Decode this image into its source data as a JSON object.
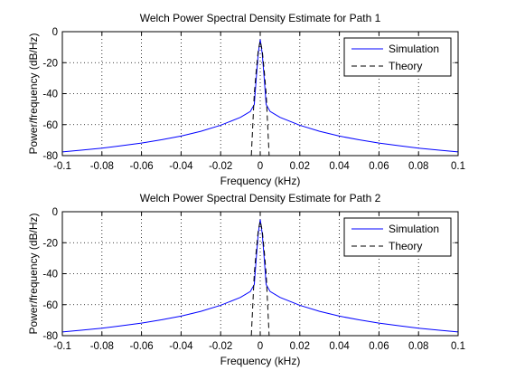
{
  "chart_data": [
    {
      "type": "line",
      "title": "Welch Power Spectral Density Estimate for Path 1",
      "xlabel": "Frequency (kHz)",
      "ylabel": "Power/frequency (dB/Hz)",
      "xlim": [
        -0.1,
        0.1
      ],
      "ylim": [
        -80,
        0
      ],
      "xticks": [
        "-0.1",
        "-0.08",
        "-0.06",
        "-0.04",
        "-0.02",
        "0",
        "0.02",
        "0.04",
        "0.06",
        "0.08",
        "0.1"
      ],
      "yticks": [
        "0",
        "-20",
        "-40",
        "-60",
        "-80"
      ],
      "grid": true,
      "legend_position": "top-right",
      "series": [
        {
          "name": "Simulation",
          "color": "#0000ff",
          "style": "solid",
          "points": [
            [
              -0.1,
              -77.6
            ],
            [
              -0.09,
              -76.4
            ],
            [
              -0.08,
              -75.2
            ],
            [
              -0.07,
              -73.6
            ],
            [
              -0.06,
              -71.9
            ],
            [
              -0.05,
              -69.8
            ],
            [
              -0.04,
              -67.4
            ],
            [
              -0.03,
              -64.3
            ],
            [
              -0.02,
              -60.4
            ],
            [
              -0.01,
              -55.3
            ],
            [
              -0.005,
              -51.5
            ],
            [
              -0.003,
              -47
            ],
            [
              -0.002,
              -30
            ],
            [
              -0.001,
              -14
            ],
            [
              0,
              -5
            ],
            [
              0.001,
              -14
            ],
            [
              0.002,
              -30
            ],
            [
              0.003,
              -47
            ],
            [
              0.005,
              -51.5
            ],
            [
              0.01,
              -55.3
            ],
            [
              0.02,
              -60.4
            ],
            [
              0.03,
              -64.3
            ],
            [
              0.04,
              -67.4
            ],
            [
              0.05,
              -69.8
            ],
            [
              0.06,
              -71.9
            ],
            [
              0.07,
              -73.6
            ],
            [
              0.08,
              -75.2
            ],
            [
              0.09,
              -76.4
            ],
            [
              0.1,
              -77.6
            ]
          ]
        },
        {
          "name": "Theory",
          "color": "#000000",
          "style": "dashed",
          "points": [
            [
              -0.0045,
              -80
            ],
            [
              -0.003,
              -40
            ],
            [
              -0.002,
              -25
            ],
            [
              -0.001,
              -12
            ],
            [
              0,
              -6
            ],
            [
              0.001,
              -12
            ],
            [
              0.002,
              -25
            ],
            [
              0.003,
              -40
            ],
            [
              0.0045,
              -80
            ]
          ]
        }
      ]
    },
    {
      "type": "line",
      "title": "Welch Power Spectral Density Estimate for Path 2",
      "xlabel": "Frequency (kHz)",
      "ylabel": "Power/frequency (dB/Hz)",
      "xlim": [
        -0.1,
        0.1
      ],
      "ylim": [
        -80,
        0
      ],
      "xticks": [
        "-0.1",
        "-0.08",
        "-0.06",
        "-0.04",
        "-0.02",
        "0",
        "0.02",
        "0.04",
        "0.06",
        "0.08",
        "0.1"
      ],
      "yticks": [
        "0",
        "-20",
        "-40",
        "-60",
        "-80"
      ],
      "grid": true,
      "legend_position": "top-right",
      "series": [
        {
          "name": "Simulation",
          "color": "#0000ff",
          "style": "solid",
          "points": [
            [
              -0.1,
              -77.6
            ],
            [
              -0.09,
              -76.4
            ],
            [
              -0.08,
              -75.2
            ],
            [
              -0.07,
              -73.6
            ],
            [
              -0.06,
              -71.9
            ],
            [
              -0.05,
              -69.8
            ],
            [
              -0.04,
              -67.4
            ],
            [
              -0.03,
              -64.3
            ],
            [
              -0.02,
              -60.4
            ],
            [
              -0.01,
              -55.3
            ],
            [
              -0.005,
              -51.5
            ],
            [
              -0.003,
              -47
            ],
            [
              -0.002,
              -30
            ],
            [
              -0.001,
              -14
            ],
            [
              0,
              -5
            ],
            [
              0.001,
              -14
            ],
            [
              0.002,
              -30
            ],
            [
              0.003,
              -47
            ],
            [
              0.005,
              -51.5
            ],
            [
              0.01,
              -55.3
            ],
            [
              0.02,
              -60.4
            ],
            [
              0.03,
              -64.3
            ],
            [
              0.04,
              -67.4
            ],
            [
              0.05,
              -69.8
            ],
            [
              0.06,
              -71.9
            ],
            [
              0.07,
              -73.6
            ],
            [
              0.08,
              -75.2
            ],
            [
              0.09,
              -76.4
            ],
            [
              0.1,
              -77.6
            ]
          ]
        },
        {
          "name": "Theory",
          "color": "#000000",
          "style": "dashed",
          "points": [
            [
              -0.0045,
              -80
            ],
            [
              -0.003,
              -40
            ],
            [
              -0.002,
              -25
            ],
            [
              -0.001,
              -12
            ],
            [
              0,
              -6
            ],
            [
              0.001,
              -12
            ],
            [
              0.002,
              -25
            ],
            [
              0.003,
              -40
            ],
            [
              0.0045,
              -80
            ]
          ]
        }
      ]
    }
  ]
}
